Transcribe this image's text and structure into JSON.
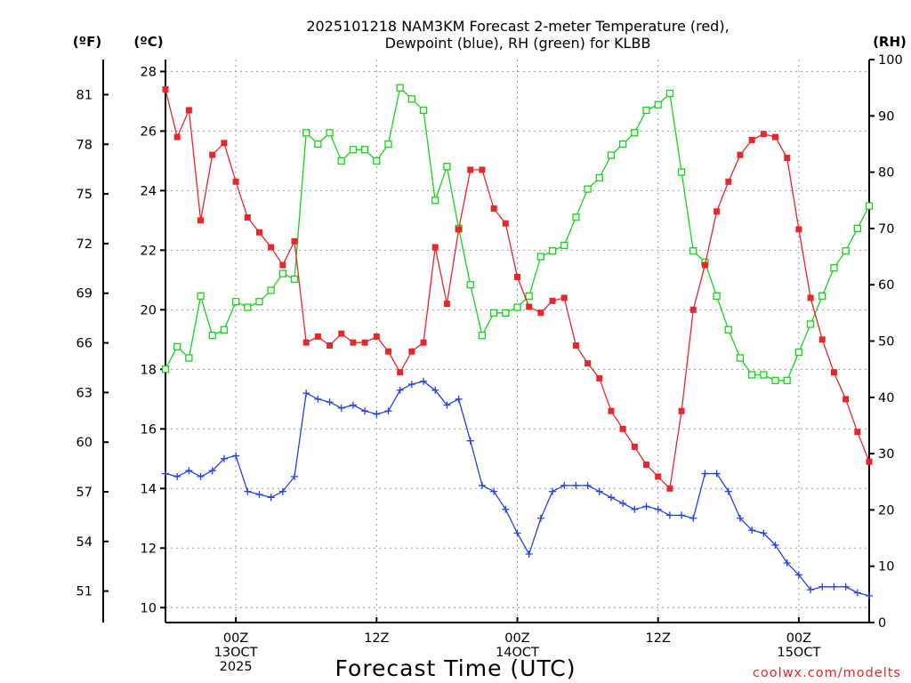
{
  "chart_data": {
    "type": "line",
    "title_line1": "2025101218 NAM3KM Forecast 2-meter Temperature (red),",
    "title_line2": "Dewpoint (blue), RH (green) for KLBB",
    "xlabel": "Forecast Time (UTC)",
    "credit": "coolwx.com/modelts",
    "unit_left_f": "(ºF)",
    "unit_left_c": "(ºC)",
    "unit_right": "(RH)",
    "x_hours_range": [
      0,
      60
    ],
    "celsius_range": [
      9.5,
      28.4
    ],
    "rh_range": [
      0,
      100
    ],
    "celsius_ticks": [
      "10",
      "12",
      "14",
      "16",
      "18",
      "20",
      "22",
      "24",
      "26",
      "28"
    ],
    "fahrenheit_ticks": [
      "51",
      "54",
      "57",
      "60",
      "63",
      "66",
      "69",
      "72",
      "75",
      "78",
      "81"
    ],
    "rh_ticks": [
      "0",
      "10",
      "20",
      "30",
      "40",
      "50",
      "60",
      "70",
      "80",
      "90",
      "100"
    ],
    "x_ticks": [
      {
        "hour": 6,
        "lines": [
          "00Z",
          "13OCT",
          "2025"
        ]
      },
      {
        "hour": 18,
        "lines": [
          "12Z"
        ]
      },
      {
        "hour": 30,
        "lines": [
          "00Z",
          "14OCT"
        ]
      },
      {
        "hour": 42,
        "lines": [
          "12Z"
        ]
      },
      {
        "hour": 54,
        "lines": [
          "00Z",
          "15OCT"
        ]
      }
    ],
    "series": [
      {
        "name": "2-meter Temperature",
        "units": "C",
        "color": "#e8262b",
        "marker": "filled-square",
        "values": [
          27.4,
          25.8,
          26.7,
          23.0,
          25.2,
          25.6,
          24.3,
          23.1,
          22.6,
          22.1,
          21.5,
          22.3,
          18.9,
          19.1,
          18.8,
          19.2,
          18.9,
          18.9,
          19.1,
          18.6,
          17.9,
          18.6,
          18.9,
          22.1,
          20.2,
          22.7,
          24.7,
          24.7,
          23.4,
          22.9,
          21.1,
          20.1,
          19.9,
          20.3,
          20.4,
          18.8,
          18.2,
          17.7,
          16.6,
          16.0,
          15.4,
          14.8,
          14.4,
          14.0,
          16.6,
          20.0,
          21.5,
          23.3,
          24.3,
          25.2,
          25.7,
          25.9,
          25.8,
          25.1,
          22.7,
          20.4,
          19.0,
          17.9,
          17.0,
          15.9,
          14.9
        ]
      },
      {
        "name": "Dewpoint",
        "units": "C",
        "color": "#2242e6",
        "marker": "plus",
        "values": [
          14.5,
          14.4,
          14.6,
          14.4,
          14.6,
          15.0,
          15.1,
          13.9,
          13.8,
          13.7,
          13.9,
          14.4,
          17.2,
          17.0,
          16.9,
          16.7,
          16.8,
          16.6,
          16.5,
          16.6,
          17.3,
          17.5,
          17.6,
          17.3,
          16.8,
          17.0,
          15.6,
          14.1,
          13.9,
          13.3,
          12.5,
          11.8,
          13.0,
          13.9,
          14.1,
          14.1,
          14.1,
          13.9,
          13.7,
          13.5,
          13.3,
          13.4,
          13.3,
          13.1,
          13.1,
          13.0,
          14.5,
          14.5,
          13.9,
          13.0,
          12.6,
          12.5,
          12.1,
          11.5,
          11.1,
          10.6,
          10.7,
          10.7,
          10.7,
          10.5,
          10.4
        ]
      },
      {
        "name": "RH",
        "units": "%",
        "color": "#15d41a",
        "marker": "open-square",
        "values": [
          45,
          49,
          47,
          58,
          51,
          52,
          57,
          56,
          57,
          59,
          62,
          61,
          87,
          85,
          87,
          82,
          84,
          84,
          82,
          85,
          95,
          93,
          91,
          75,
          81,
          70,
          60,
          51,
          55,
          55,
          56,
          58,
          65,
          66,
          67,
          72,
          77,
          79,
          83,
          85,
          87,
          91,
          92,
          94,
          80,
          66,
          64,
          58,
          52,
          47,
          44,
          44,
          43,
          43,
          48,
          53,
          58,
          63,
          66,
          70,
          74
        ]
      }
    ]
  }
}
